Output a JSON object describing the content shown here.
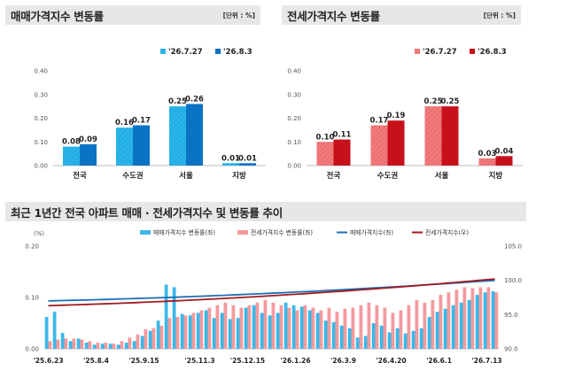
{
  "panels": {
    "sale": {
      "title": "매매가격지수 변동률",
      "unit": "[단위 : %]"
    },
    "jeonse": {
      "title": "전세가격지수 변동률",
      "unit": "[단위 : %]"
    },
    "trend": {
      "title": "최근 1년간 전국 아파트 매매 · 전세가격지수 및 변동률 추이"
    }
  },
  "colors": {
    "sale_light": "#29b5e8",
    "sale_dark": "#0b73c4",
    "jeonse_light": "#f07a7c",
    "jeonse_dark": "#c8101b",
    "sale_bar": "#3cb8ea",
    "jeonse_bar": "#f49a9c",
    "sale_index_line": "#1f6fb8",
    "jeonse_index_line": "#a11a1f"
  },
  "chart_data": [
    {
      "type": "bar",
      "title": "매매가격지수 변동률",
      "unit": "[단위 : %]",
      "categories": [
        "전국",
        "수도권",
        "서울",
        "지방"
      ],
      "series": [
        {
          "name": "'26.7.27",
          "values": [
            0.08,
            0.16,
            0.25,
            0.01
          ]
        },
        {
          "name": "'26.8.3",
          "values": [
            0.09,
            0.17,
            0.26,
            0.01
          ]
        }
      ],
      "ylim": [
        0,
        0.4
      ],
      "yticks": [
        "0.00",
        "0.10",
        "0.20",
        "0.30",
        "0.40"
      ],
      "legend": "top-right",
      "grid": false
    },
    {
      "type": "bar",
      "title": "전세가격지수 변동률",
      "unit": "[단위 : %]",
      "categories": [
        "전국",
        "수도권",
        "서울",
        "지방"
      ],
      "series": [
        {
          "name": "'26.7.27",
          "values": [
            0.1,
            0.17,
            0.25,
            0.03
          ]
        },
        {
          "name": "'26.8.3",
          "values": [
            0.11,
            0.19,
            0.25,
            0.04
          ]
        }
      ],
      "ylim": [
        0,
        0.4
      ],
      "yticks": [
        "0.00",
        "0.10",
        "0.20",
        "0.30",
        "0.40"
      ],
      "legend": "top-right",
      "grid": false
    },
    {
      "type": "bar",
      "title": "최근 1년간 전국 아파트 매매 · 전세가격지수 및 변동률 추이",
      "left_axis_label": "(%)",
      "left_ylim": [
        0,
        0.2
      ],
      "left_yticks": [
        "0.00",
        "0.10",
        "0.20"
      ],
      "right_ylim": [
        90,
        105
      ],
      "right_yticks": [
        "90.0",
        "95.0",
        "100.0",
        "105.0"
      ],
      "xticks": [
        "'25.6.23",
        "'25.8.4",
        "'25.9.15",
        "'25.11.3",
        "'25.12.15",
        "'26.1.26",
        "'26.3.9",
        "'26.4.20",
        "'26.6.1",
        "'26.7.13"
      ],
      "xtick_week_index": [
        0,
        6,
        12,
        19,
        25,
        31,
        37,
        43,
        49,
        55
      ],
      "series": [
        {
          "name": "매매가격지수 변동률(좌)",
          "kind": "bar",
          "axis": "left",
          "values": [
            0.062,
            0.072,
            0.031,
            0.015,
            0.02,
            0.012,
            0.008,
            0.01,
            0.01,
            0.008,
            0.012,
            0.015,
            0.025,
            0.035,
            0.055,
            0.125,
            0.12,
            0.068,
            0.065,
            0.07,
            0.075,
            0.06,
            0.07,
            0.058,
            0.06,
            0.08,
            0.085,
            0.07,
            0.065,
            0.07,
            0.09,
            0.085,
            0.082,
            0.075,
            0.07,
            0.055,
            0.052,
            0.045,
            0.04,
            0.022,
            0.025,
            0.05,
            0.045,
            0.032,
            0.04,
            0.03,
            0.035,
            0.04,
            0.062,
            0.072,
            0.078,
            0.085,
            0.09,
            0.095,
            0.105,
            0.11,
            0.112
          ]
        },
        {
          "name": "전세가격지수 변동률(좌)",
          "kind": "bar",
          "axis": "left",
          "values": [
            0.015,
            0.018,
            0.02,
            0.02,
            0.018,
            0.015,
            0.012,
            0.012,
            0.01,
            0.015,
            0.022,
            0.028,
            0.038,
            0.04,
            0.045,
            0.06,
            0.062,
            0.065,
            0.07,
            0.075,
            0.08,
            0.085,
            0.09,
            0.085,
            0.08,
            0.085,
            0.09,
            0.095,
            0.09,
            0.085,
            0.08,
            0.075,
            0.085,
            0.08,
            0.075,
            0.08,
            0.072,
            0.078,
            0.08,
            0.085,
            0.09,
            0.085,
            0.08,
            0.07,
            0.075,
            0.085,
            0.095,
            0.09,
            0.095,
            0.105,
            0.11,
            0.115,
            0.12,
            0.118,
            0.12,
            0.12,
            0.11
          ]
        },
        {
          "name": "매매가격지수(좌)",
          "kind": "line",
          "axis": "right",
          "start": 97.0,
          "end": 100.0
        },
        {
          "name": "전세가격지수(우)",
          "kind": "line",
          "axis": "right",
          "start": 96.3,
          "end": 100.2
        }
      ],
      "legend": "top"
    }
  ]
}
